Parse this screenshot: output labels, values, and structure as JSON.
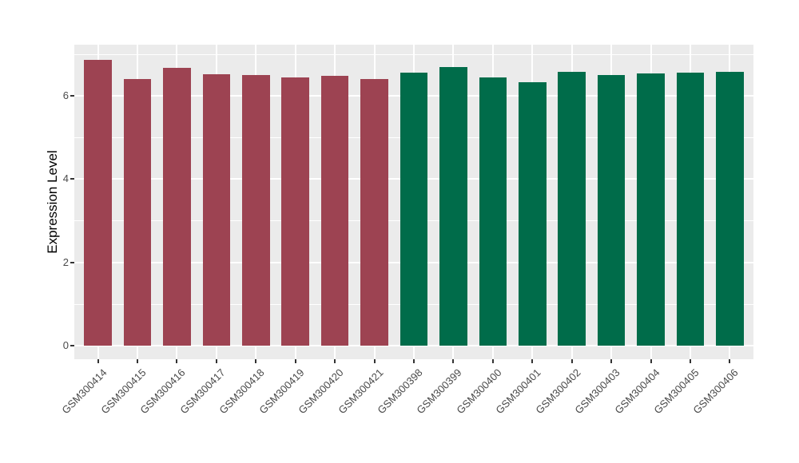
{
  "chart_data": {
    "type": "bar",
    "title": "",
    "xlabel": "",
    "ylabel": "Expression Level",
    "categories": [
      "GSM300414",
      "GSM300415",
      "GSM300416",
      "GSM300417",
      "GSM300418",
      "GSM300419",
      "GSM300420",
      "GSM300421",
      "GSM300398",
      "GSM300399",
      "GSM300400",
      "GSM300401",
      "GSM300402",
      "GSM300403",
      "GSM300404",
      "GSM300405",
      "GSM300406"
    ],
    "values": [
      6.86,
      6.4,
      6.66,
      6.51,
      6.49,
      6.44,
      6.48,
      6.4,
      6.55,
      6.68,
      6.44,
      6.33,
      6.58,
      6.49,
      6.53,
      6.55,
      6.57
    ],
    "bar_groups": [
      "set1",
      "set1",
      "set1",
      "set1",
      "set1",
      "set1",
      "set1",
      "set1",
      "set2",
      "set2",
      "set2",
      "set2",
      "set2",
      "set2",
      "set2",
      "set2",
      "set2"
    ],
    "group_colors": {
      "set1": "#9D4352",
      "set2": "#006C4A"
    },
    "ylim": [
      -0.33,
      7.22
    ],
    "yticks": [
      0,
      2,
      4,
      6
    ],
    "ytick_labels": [
      "0",
      "2",
      "4",
      "6"
    ],
    "yminor": [
      1,
      3,
      5,
      7
    ],
    "x_tick_label_angle_deg": 45,
    "grid": "white major and minor horizontal gridlines; vertical major gridlines at bar centers; gray panel",
    "legend_position": "none"
  },
  "style": {
    "figure_background": "#FFFFFF",
    "panel_background": "#EBEBEB",
    "gridline_color": "#FFFFFF",
    "bar_color_group1": "#9D4352",
    "bar_color_group2": "#006C4A",
    "axis_tick_color": "#333333",
    "axis_text_color": "#4A4A4A",
    "axis_title_color": "#000000"
  }
}
